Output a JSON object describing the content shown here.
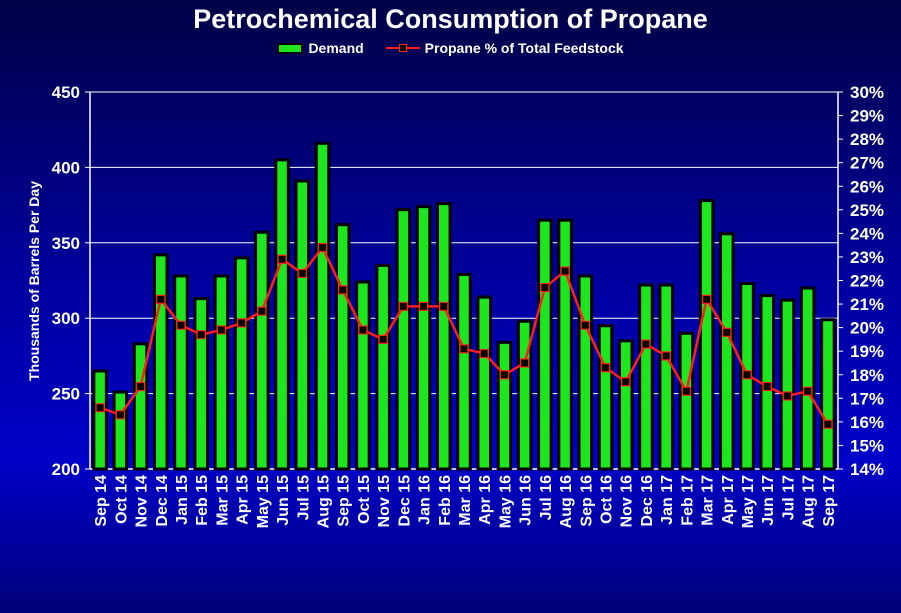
{
  "chart_data": {
    "type": "bar",
    "title": "Petrochemical Consumption of Propane",
    "xlabel": "",
    "ylabel": "Thousands of Barrels Per Day",
    "y2label": "",
    "ylim": [
      200,
      450
    ],
    "y_ticks": [
      200,
      250,
      300,
      350,
      400,
      450
    ],
    "y2lim": [
      14,
      30
    ],
    "y2_ticks": [
      "14%",
      "15%",
      "16%",
      "17%",
      "18%",
      "19%",
      "20%",
      "21%",
      "22%",
      "23%",
      "24%",
      "25%",
      "26%",
      "27%",
      "28%",
      "29%",
      "30%"
    ],
    "grid": "horizontal",
    "legend_position": "top",
    "categories": [
      "Sep 14",
      "Oct 14",
      "Nov 14",
      "Dec 14",
      "Jan 15",
      "Feb 15",
      "Mar 15",
      "Apr 15",
      "May 15",
      "Jun 15",
      "Jul 15",
      "Aug 15",
      "Sep 15",
      "Oct 15",
      "Nov 15",
      "Dec 15",
      "Jan 16",
      "Feb 16",
      "Mar 16",
      "Apr 16",
      "May 16",
      "Jun 16",
      "Jul 16",
      "Aug 16",
      "Sep 16",
      "Oct 16",
      "Nov 16",
      "Dec 16",
      "Jan 17",
      "Feb 17",
      "Mar 17",
      "Apr 17",
      "May 17",
      "Jun 17",
      "Jul 17",
      "Aug 17",
      "Sep 17"
    ],
    "series": [
      {
        "name": "Demand",
        "kind": "bar",
        "axis": "left",
        "color": "#1ee61e",
        "values": [
          265,
          251,
          283,
          342,
          328,
          313,
          328,
          340,
          357,
          405,
          391,
          416,
          362,
          324,
          335,
          372,
          374,
          376,
          329,
          314,
          284,
          298,
          365,
          365,
          328,
          295,
          285,
          322,
          322,
          290,
          378,
          356,
          323,
          315,
          312,
          320,
          299
        ]
      },
      {
        "name": "Propane % of Total Feedstock",
        "kind": "line",
        "axis": "right",
        "color": "#ff1e1e",
        "values": [
          16.6,
          16.3,
          17.5,
          21.2,
          20.1,
          19.7,
          19.9,
          20.2,
          20.7,
          22.9,
          22.3,
          23.4,
          21.6,
          19.9,
          19.5,
          20.9,
          20.9,
          20.9,
          19.1,
          18.9,
          18.0,
          18.5,
          21.7,
          22.4,
          20.1,
          18.3,
          17.7,
          19.3,
          18.8,
          17.3,
          21.2,
          19.8,
          18.0,
          17.5,
          17.1,
          17.3,
          15.9
        ]
      }
    ]
  }
}
